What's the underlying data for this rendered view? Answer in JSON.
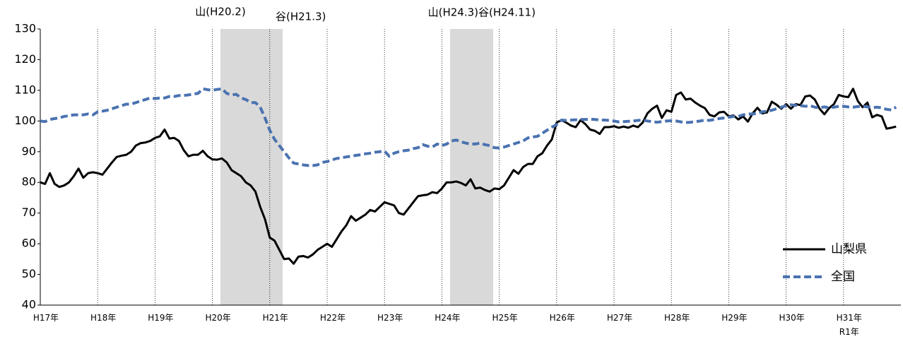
{
  "chart_data": {
    "type": "line",
    "annotations": [
      "山(H20.2)",
      "谷(H21.3)",
      "山(H24.3)",
      "谷(H24.11)"
    ],
    "categories": [
      "H17年",
      null,
      null,
      null,
      null,
      null,
      null,
      null,
      null,
      null,
      null,
      null,
      "H18年",
      null,
      null,
      null,
      null,
      null,
      null,
      null,
      null,
      null,
      null,
      null,
      "H19年",
      null,
      null,
      null,
      null,
      null,
      null,
      null,
      null,
      null,
      null,
      null,
      "H20年",
      null,
      null,
      null,
      null,
      null,
      null,
      null,
      null,
      null,
      null,
      null,
      "H21年",
      null,
      null,
      null,
      null,
      null,
      null,
      null,
      null,
      null,
      null,
      null,
      "H22年",
      null,
      null,
      null,
      null,
      null,
      null,
      null,
      null,
      null,
      null,
      null,
      "H23年",
      null,
      null,
      null,
      null,
      null,
      null,
      null,
      null,
      null,
      null,
      null,
      "H24年",
      null,
      null,
      null,
      null,
      null,
      null,
      null,
      null,
      null,
      null,
      null,
      "H25年",
      null,
      null,
      null,
      null,
      null,
      null,
      null,
      null,
      null,
      null,
      null,
      "H26年",
      null,
      null,
      null,
      null,
      null,
      null,
      null,
      null,
      null,
      null,
      null,
      "H27年",
      null,
      null,
      null,
      null,
      null,
      null,
      null,
      null,
      null,
      null,
      null,
      "H28年",
      null,
      null,
      null,
      null,
      null,
      null,
      null,
      null,
      null,
      null,
      null,
      "H29年",
      null,
      null,
      null,
      null,
      null,
      null,
      null,
      null,
      null,
      null,
      null,
      "H30年",
      null,
      null,
      null,
      null,
      null,
      null,
      null,
      null,
      null,
      null,
      null,
      "H31年\nR1年",
      null,
      null,
      null,
      null,
      null,
      null,
      null,
      null,
      null,
      null,
      null
    ],
    "series": [
      {
        "name": "山梨県",
        "color": "#000000",
        "line_style": "solid",
        "values": [
          80,
          79.5,
          83,
          79.5,
          78.5,
          79,
          80,
          82,
          84.5,
          81.5,
          83,
          83.3,
          83,
          82.5,
          84.5,
          86.5,
          88.3,
          88.7,
          89,
          90,
          92,
          92.8,
          93,
          93.5,
          94.5,
          95,
          97.2,
          94.3,
          94.5,
          93.5,
          90.5,
          88.5,
          89,
          89,
          90.3,
          88.5,
          87.5,
          87.4,
          87.8,
          86.5,
          84,
          83,
          82,
          80,
          79,
          77,
          72,
          68,
          62,
          61,
          58,
          55,
          55.2,
          53.5,
          55.8,
          56,
          55.5,
          56.5,
          58,
          59,
          60,
          59,
          61.5,
          64,
          66,
          69,
          67.5,
          68.5,
          69.5,
          71,
          70.5,
          72,
          73.5,
          73,
          72.5,
          70,
          69.5,
          71.5,
          73.5,
          75.5,
          75.8,
          76,
          76.8,
          76.5,
          78,
          80,
          80,
          80.3,
          79.8,
          79,
          81,
          78,
          78.3,
          77.5,
          77,
          78,
          77.8,
          79,
          81.5,
          84,
          82.8,
          85,
          86,
          86,
          88.5,
          89.5,
          92,
          94,
          99.5,
          100.3,
          99.5,
          98.5,
          98,
          100.3,
          99,
          97.2,
          96.8,
          95.8,
          98,
          98,
          98.3,
          97.8,
          98.2,
          97.8,
          98.5,
          98,
          99.5,
          102.5,
          104,
          105,
          101,
          103.5,
          103,
          108.5,
          109.3,
          107,
          107.3,
          106,
          105,
          104.2,
          102,
          101.5,
          102.8,
          103,
          101.5,
          101.8,
          100.5,
          101.5,
          99.8,
          102.5,
          104.3,
          102.5,
          102.8,
          106.3,
          105.3,
          104,
          105.5,
          104,
          105.5,
          105.2,
          108,
          108.3,
          107,
          104,
          102.2,
          104.2,
          105.5,
          108.5,
          108,
          107.8,
          110.5,
          106.5,
          104.5,
          106,
          101.2,
          102,
          101.5,
          97.5,
          97.8,
          98.2
        ]
      },
      {
        "name": "全国",
        "color": "#4a72b0",
        "line_style": "dashed",
        "values": [
          100,
          99.8,
          100.5,
          100.8,
          101,
          101.5,
          101.7,
          102,
          102,
          102,
          102.3,
          102,
          103,
          103.2,
          103.5,
          104,
          104.5,
          105,
          105.5,
          105.5,
          106,
          106.5,
          107,
          107.5,
          107.3,
          107.5,
          107.5,
          108,
          108,
          108.3,
          108.3,
          108.5,
          108.8,
          109,
          110.5,
          110.2,
          110,
          110.3,
          110.5,
          109,
          108.5,
          108.7,
          107.5,
          107,
          106,
          106,
          104.5,
          101,
          97,
          94,
          92,
          90,
          88,
          86.3,
          86,
          85.7,
          85.5,
          85.5,
          85.7,
          86.5,
          86.8,
          87.3,
          87.8,
          88,
          88.3,
          88.5,
          88.8,
          89,
          89.3,
          89.5,
          89.8,
          90,
          90.2,
          88.5,
          89.5,
          90,
          90.3,
          90.5,
          91,
          91.3,
          92.3,
          91.8,
          91.5,
          92.5,
          92,
          92.5,
          93.5,
          93.8,
          93.2,
          92.8,
          92.5,
          92.5,
          92.8,
          92.3,
          92,
          91.3,
          91.2,
          91.5,
          92,
          92.5,
          93,
          93.5,
          94.5,
          94.8,
          95,
          96,
          97,
          98,
          98.8,
          100.3,
          100.2,
          100.3,
          100.4,
          100.5,
          100.5,
          100.6,
          100.5,
          100.3,
          100.3,
          100.2,
          100,
          99.7,
          99.8,
          99.9,
          100,
          100.2,
          100.3,
          100,
          99.8,
          99.6,
          99.8,
          100,
          100.1,
          100,
          99.7,
          99.5,
          99.6,
          99.8,
          100,
          100.3,
          100.2,
          100.5,
          100.8,
          101,
          101.2,
          101.5,
          101.5,
          102,
          102.3,
          102.3,
          102.5,
          103,
          103.2,
          103.5,
          104,
          104.5,
          105,
          105.3,
          105.1,
          105,
          104.8,
          105,
          104.5,
          104.3,
          104.6,
          104.3,
          104.5,
          104.8,
          104.8,
          104.6,
          104.5,
          104.7,
          104.8,
          104.6,
          104.4,
          104.5,
          104.3,
          103.8,
          103.6,
          104.5
        ]
      }
    ],
    "ylim": [
      40,
      130
    ],
    "yticks": [
      40,
      50,
      60,
      70,
      80,
      90,
      100,
      110,
      120,
      130
    ],
    "legend": "lower right"
  }
}
